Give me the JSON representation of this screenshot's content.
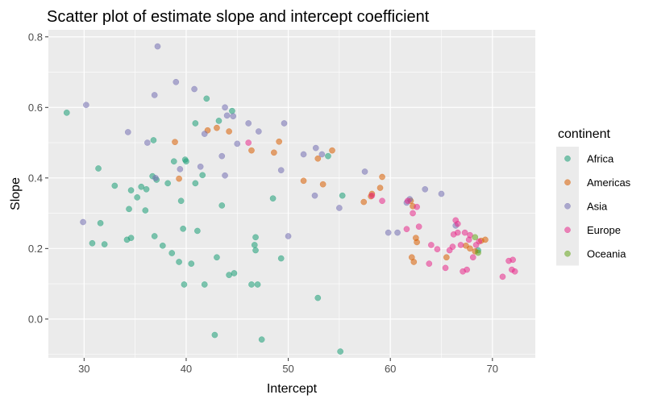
{
  "chart_data": {
    "type": "scatter",
    "title": "Scatter plot of estimate slope and intercept coefficient",
    "xlabel": "Intercept",
    "ylabel": "Slope",
    "xlim": [
      26.5,
      74.2
    ],
    "ylim": [
      -0.11,
      0.82
    ],
    "xticks": [
      30,
      40,
      50,
      60,
      70
    ],
    "yticks": [
      0.0,
      0.2,
      0.4,
      0.6,
      0.8
    ],
    "ytick_labels": [
      "0.0",
      "0.2",
      "0.4",
      "0.6",
      "0.8"
    ],
    "grid": true,
    "legend": {
      "title": "continent",
      "placement": "right"
    },
    "series": [
      {
        "name": "Africa",
        "color": "#1b9e77",
        "points": [
          [
            28.3,
            0.585
          ],
          [
            30.8,
            0.215
          ],
          [
            31.4,
            0.427
          ],
          [
            31.6,
            0.272
          ],
          [
            32.0,
            0.212
          ],
          [
            33.0,
            0.378
          ],
          [
            34.2,
            0.225
          ],
          [
            34.4,
            0.312
          ],
          [
            34.6,
            0.23
          ],
          [
            34.6,
            0.365
          ],
          [
            35.2,
            0.345
          ],
          [
            35.6,
            0.375
          ],
          [
            36.0,
            0.308
          ],
          [
            36.1,
            0.368
          ],
          [
            36.7,
            0.405
          ],
          [
            36.8,
            0.507
          ],
          [
            36.9,
            0.235
          ],
          [
            37.1,
            0.395
          ],
          [
            37.7,
            0.208
          ],
          [
            38.2,
            0.385
          ],
          [
            38.6,
            0.187
          ],
          [
            38.8,
            0.447
          ],
          [
            39.3,
            0.162
          ],
          [
            39.5,
            0.335
          ],
          [
            39.7,
            0.256
          ],
          [
            39.8,
            0.098
          ],
          [
            39.9,
            0.452
          ],
          [
            40.0,
            0.447
          ],
          [
            40.5,
            0.157
          ],
          [
            40.9,
            0.555
          ],
          [
            40.9,
            0.385
          ],
          [
            41.1,
            0.25
          ],
          [
            41.6,
            0.408
          ],
          [
            41.8,
            0.098
          ],
          [
            42.0,
            0.625
          ],
          [
            42.8,
            -0.045
          ],
          [
            43.0,
            0.175
          ],
          [
            43.2,
            0.562
          ],
          [
            43.5,
            0.322
          ],
          [
            44.2,
            0.125
          ],
          [
            44.5,
            0.59
          ],
          [
            44.7,
            0.13
          ],
          [
            46.4,
            0.098
          ],
          [
            46.7,
            0.21
          ],
          [
            46.8,
            0.195
          ],
          [
            46.8,
            0.232
          ],
          [
            47.0,
            0.098
          ],
          [
            47.4,
            -0.058
          ],
          [
            48.5,
            0.342
          ],
          [
            49.3,
            0.172
          ],
          [
            52.9,
            0.06
          ],
          [
            53.9,
            0.462
          ],
          [
            55.1,
            -0.092
          ],
          [
            55.3,
            0.35
          ],
          [
            68.6,
            0.195
          ]
        ]
      },
      {
        "name": "Americas",
        "color": "#d95f02",
        "points": [
          [
            38.9,
            0.502
          ],
          [
            39.3,
            0.398
          ],
          [
            42.1,
            0.535
          ],
          [
            43.0,
            0.542
          ],
          [
            44.2,
            0.532
          ],
          [
            46.4,
            0.478
          ],
          [
            48.6,
            0.472
          ],
          [
            49.1,
            0.503
          ],
          [
            51.5,
            0.392
          ],
          [
            52.9,
            0.455
          ],
          [
            53.4,
            0.382
          ],
          [
            54.3,
            0.478
          ],
          [
            57.4,
            0.332
          ],
          [
            58.1,
            0.348
          ],
          [
            58.2,
            0.355
          ],
          [
            59.0,
            0.372
          ],
          [
            59.2,
            0.403
          ],
          [
            62.0,
            0.335
          ],
          [
            62.2,
            0.32
          ],
          [
            62.1,
            0.175
          ],
          [
            62.3,
            0.162
          ],
          [
            62.5,
            0.23
          ],
          [
            62.6,
            0.218
          ],
          [
            65.5,
            0.175
          ],
          [
            67.4,
            0.208
          ],
          [
            67.8,
            0.2
          ],
          [
            68.3,
            0.192
          ],
          [
            68.9,
            0.222
          ],
          [
            69.3,
            0.225
          ]
        ]
      },
      {
        "name": "Asia",
        "color": "#7570b3",
        "points": [
          [
            29.9,
            0.275
          ],
          [
            30.2,
            0.607
          ],
          [
            34.3,
            0.53
          ],
          [
            36.2,
            0.5
          ],
          [
            36.9,
            0.635
          ],
          [
            37.0,
            0.4
          ],
          [
            37.2,
            0.773
          ],
          [
            39.0,
            0.672
          ],
          [
            39.4,
            0.425
          ],
          [
            40.8,
            0.652
          ],
          [
            41.4,
            0.432
          ],
          [
            41.8,
            0.525
          ],
          [
            43.5,
            0.462
          ],
          [
            43.8,
            0.407
          ],
          [
            43.8,
            0.6
          ],
          [
            44.0,
            0.577
          ],
          [
            44.6,
            0.575
          ],
          [
            45.0,
            0.497
          ],
          [
            46.1,
            0.555
          ],
          [
            47.1,
            0.532
          ],
          [
            49.3,
            0.422
          ],
          [
            49.6,
            0.555
          ],
          [
            50.0,
            0.235
          ],
          [
            51.5,
            0.467
          ],
          [
            52.6,
            0.35
          ],
          [
            52.7,
            0.485
          ],
          [
            53.3,
            0.467
          ],
          [
            55.0,
            0.315
          ],
          [
            57.5,
            0.418
          ],
          [
            59.8,
            0.245
          ],
          [
            60.7,
            0.245
          ],
          [
            61.6,
            0.33
          ],
          [
            61.9,
            0.34
          ],
          [
            63.4,
            0.368
          ],
          [
            65.0,
            0.355
          ],
          [
            66.4,
            0.265
          ]
        ]
      },
      {
        "name": "Europe",
        "color": "#e7298a",
        "points": [
          [
            46.1,
            0.5
          ],
          [
            58.2,
            0.35
          ],
          [
            59.2,
            0.335
          ],
          [
            61.6,
            0.255
          ],
          [
            61.7,
            0.335
          ],
          [
            62.2,
            0.3
          ],
          [
            62.6,
            0.318
          ],
          [
            62.8,
            0.262
          ],
          [
            63.8,
            0.157
          ],
          [
            64.0,
            0.21
          ],
          [
            64.6,
            0.198
          ],
          [
            65.4,
            0.145
          ],
          [
            65.8,
            0.195
          ],
          [
            66.1,
            0.205
          ],
          [
            66.2,
            0.24
          ],
          [
            66.4,
            0.28
          ],
          [
            66.6,
            0.27
          ],
          [
            66.6,
            0.245
          ],
          [
            66.9,
            0.21
          ],
          [
            67.1,
            0.135
          ],
          [
            67.3,
            0.245
          ],
          [
            67.5,
            0.14
          ],
          [
            67.7,
            0.225
          ],
          [
            67.8,
            0.238
          ],
          [
            68.1,
            0.175
          ],
          [
            68.4,
            0.21
          ],
          [
            68.7,
            0.22
          ],
          [
            71.0,
            0.12
          ],
          [
            71.6,
            0.165
          ],
          [
            71.9,
            0.14
          ],
          [
            72.0,
            0.168
          ],
          [
            72.2,
            0.135
          ]
        ]
      },
      {
        "name": "Oceania",
        "color": "#66a61e",
        "points": [
          [
            68.3,
            0.232
          ],
          [
            68.6,
            0.188
          ]
        ]
      }
    ]
  }
}
